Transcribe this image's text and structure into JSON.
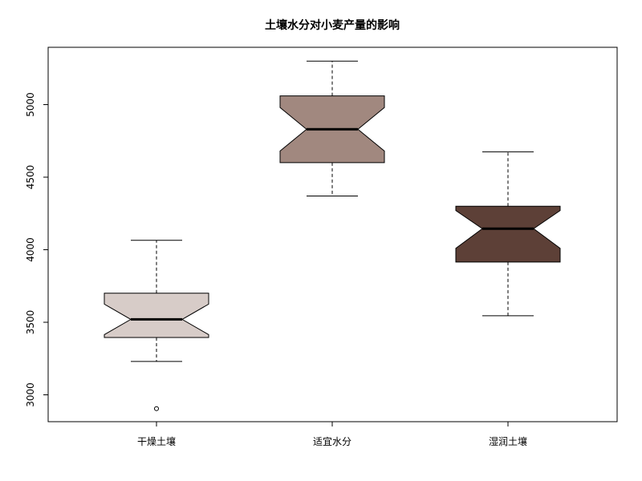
{
  "chart_data": {
    "type": "boxplot",
    "title": "土壤水分对小麦产量的影响",
    "xlabel": "",
    "ylabel": "",
    "categories": [
      "干燥土壤",
      "适宜水分",
      "湿润土壤"
    ],
    "ylim": [
      2815,
      5395
    ],
    "yticks": [
      3000,
      3500,
      4000,
      4500,
      5000
    ],
    "notch": true,
    "grid": false,
    "boxes": [
      {
        "whisker_low": 3230,
        "q1": 3395,
        "median": 3520,
        "q3": 3700,
        "whisker_high": 4065,
        "notch_low": 3415,
        "notch_high": 3625,
        "outliers": [
          2905
        ],
        "color": "#d7ccc8"
      },
      {
        "whisker_low": 4370,
        "q1": 4600,
        "median": 4830,
        "q3": 5060,
        "whisker_high": 5300,
        "notch_low": 4680,
        "notch_high": 4980,
        "outliers": [],
        "color": "#a1887f"
      },
      {
        "whisker_low": 3545,
        "q1": 3915,
        "median": 4145,
        "q3": 4300,
        "whisker_high": 4675,
        "notch_low": 4010,
        "notch_high": 4270,
        "outliers": [],
        "color": "#5d4037"
      }
    ]
  }
}
